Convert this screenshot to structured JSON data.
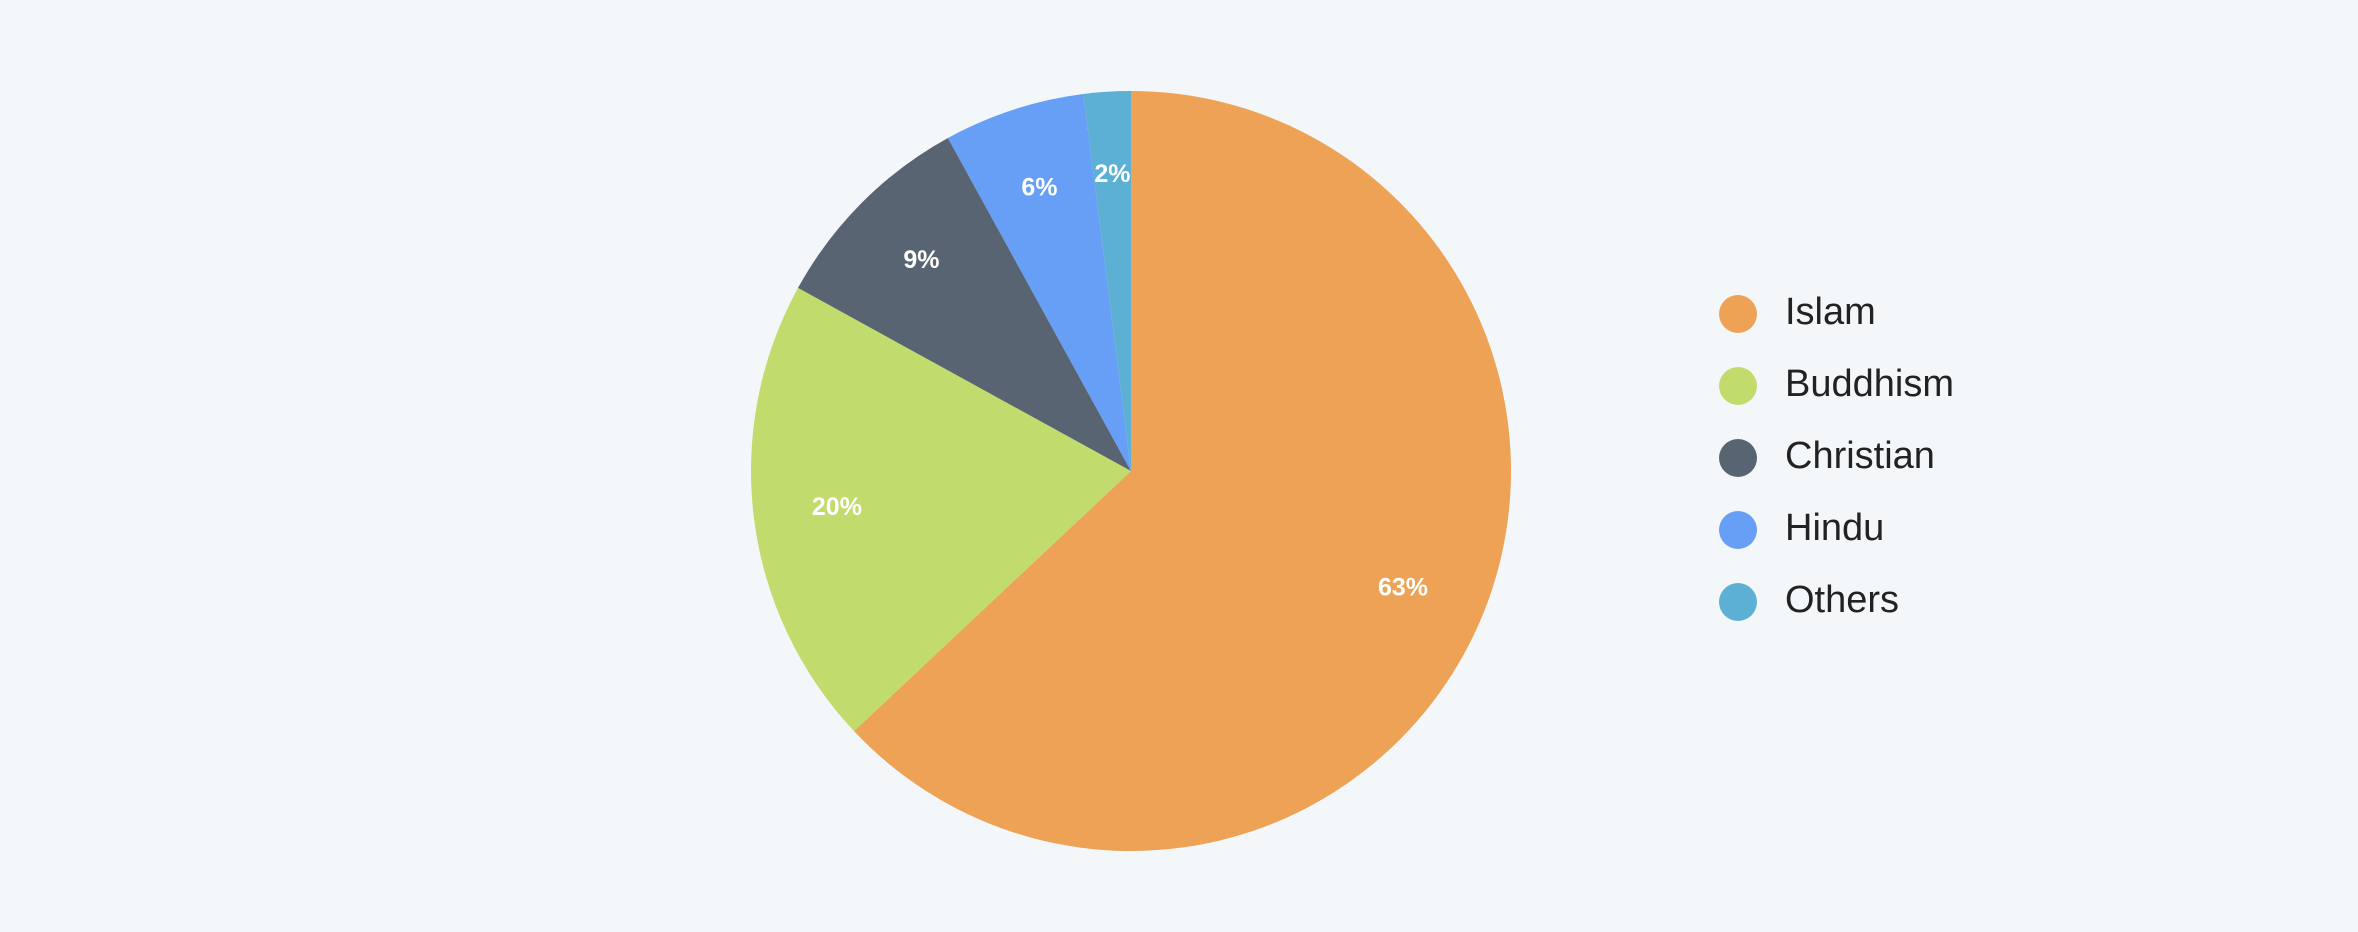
{
  "chart_data": {
    "type": "pie",
    "categories": [
      "Islam",
      "Buddhism",
      "Christian",
      "Hindu",
      "Others"
    ],
    "values": [
      63,
      20,
      9,
      6,
      2
    ],
    "value_labels": [
      "63%",
      "20%",
      "9%",
      "6%",
      "2%"
    ],
    "colors": [
      "#eda256",
      "#c2db6d",
      "#586472",
      "#669ff5",
      "#5cb0d4"
    ],
    "legend": "right"
  }
}
